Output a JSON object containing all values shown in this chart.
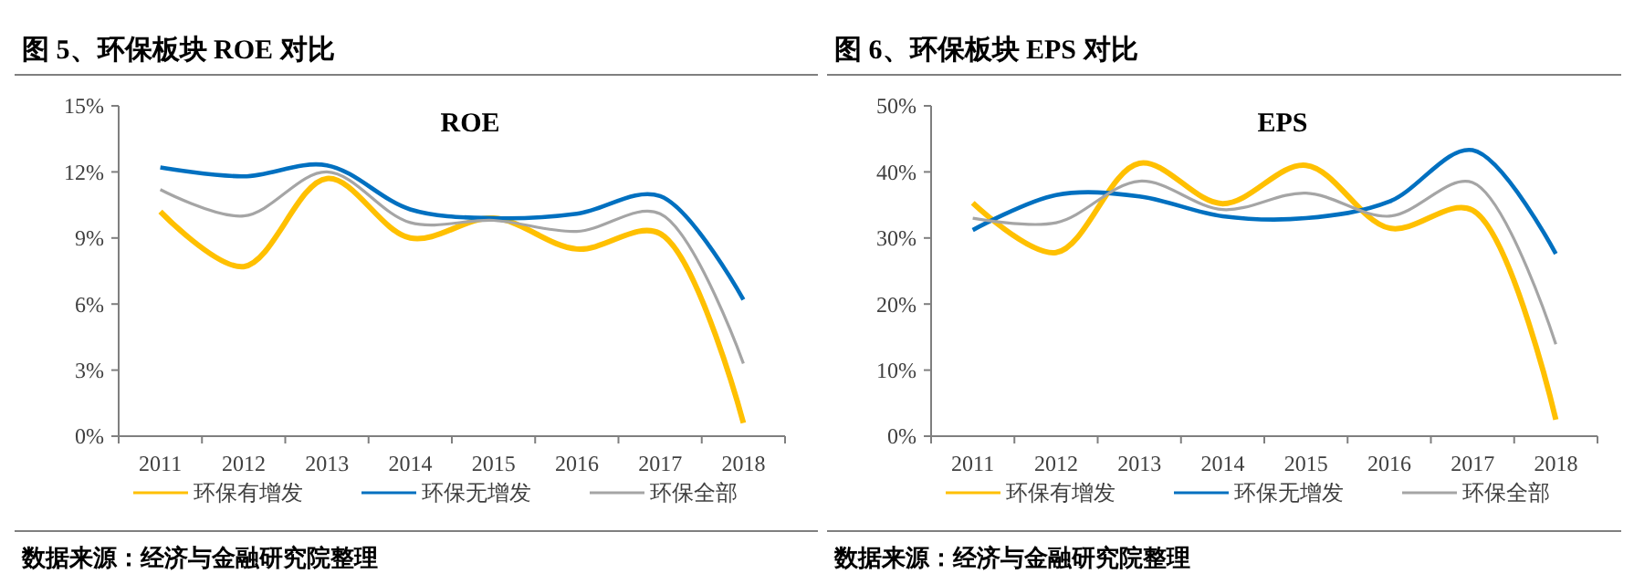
{
  "chart_data": [
    {
      "type": "line",
      "title": "图 5、环保板块 ROE 对比",
      "subtitle": "ROE",
      "categories": [
        "2011",
        "2012",
        "2013",
        "2014",
        "2015",
        "2016",
        "2017",
        "2018"
      ],
      "series": [
        {
          "name": "环保有增发",
          "color": "#ffc000",
          "values": [
            10.2,
            7.7,
            11.7,
            9.0,
            9.9,
            8.5,
            9.2,
            0.6
          ]
        },
        {
          "name": "环保无增发",
          "color": "#0070c0",
          "values": [
            12.2,
            11.8,
            12.3,
            10.3,
            9.9,
            10.1,
            10.9,
            6.2
          ]
        },
        {
          "name": "环保全部",
          "color": "#a5a5a5",
          "values": [
            11.2,
            10.0,
            12.0,
            9.7,
            9.8,
            9.3,
            10.1,
            3.3
          ]
        }
      ],
      "ylim": [
        0,
        15
      ],
      "yticks": [
        {
          "value": 0,
          "label": "0%"
        },
        {
          "value": 3,
          "label": "3%"
        },
        {
          "value": 6,
          "label": "6%"
        },
        {
          "value": 9,
          "label": "9%"
        },
        {
          "value": 12,
          "label": "12%"
        },
        {
          "value": 15,
          "label": "15%"
        }
      ],
      "grid": false,
      "legend": "bottom",
      "marker": "none",
      "line_style": "solid",
      "annotations": [
        "数据来源：经济与金融研究院整理"
      ]
    },
    {
      "type": "line",
      "title": "图 6、环保板块 EPS 对比",
      "subtitle": "EPS",
      "categories": [
        "2011",
        "2012",
        "2013",
        "2014",
        "2015",
        "2016",
        "2017",
        "2018"
      ],
      "series": [
        {
          "name": "环保有增发",
          "color": "#ffc000",
          "values": [
            35.3,
            27.8,
            41.3,
            35.2,
            41.0,
            31.5,
            34.2,
            2.5
          ]
        },
        {
          "name": "环保无增发",
          "color": "#0070c0",
          "values": [
            31.2,
            36.5,
            36.3,
            33.3,
            33.0,
            35.5,
            43.3,
            27.6
          ]
        },
        {
          "name": "环保全部",
          "color": "#a5a5a5",
          "values": [
            33.0,
            32.3,
            38.6,
            34.3,
            36.8,
            33.3,
            38.4,
            13.9
          ]
        }
      ],
      "ylim": [
        0,
        50
      ],
      "yticks": [
        {
          "value": 0,
          "label": "0%"
        },
        {
          "value": 10,
          "label": "10%"
        },
        {
          "value": 20,
          "label": "20%"
        },
        {
          "value": 30,
          "label": "30%"
        },
        {
          "value": 40,
          "label": "40%"
        },
        {
          "value": 50,
          "label": "50%"
        }
      ],
      "grid": false,
      "legend": "bottom",
      "marker": "none",
      "line_style": "solid",
      "annotations": [
        "数据来源：经济与金融研究院整理"
      ]
    }
  ]
}
